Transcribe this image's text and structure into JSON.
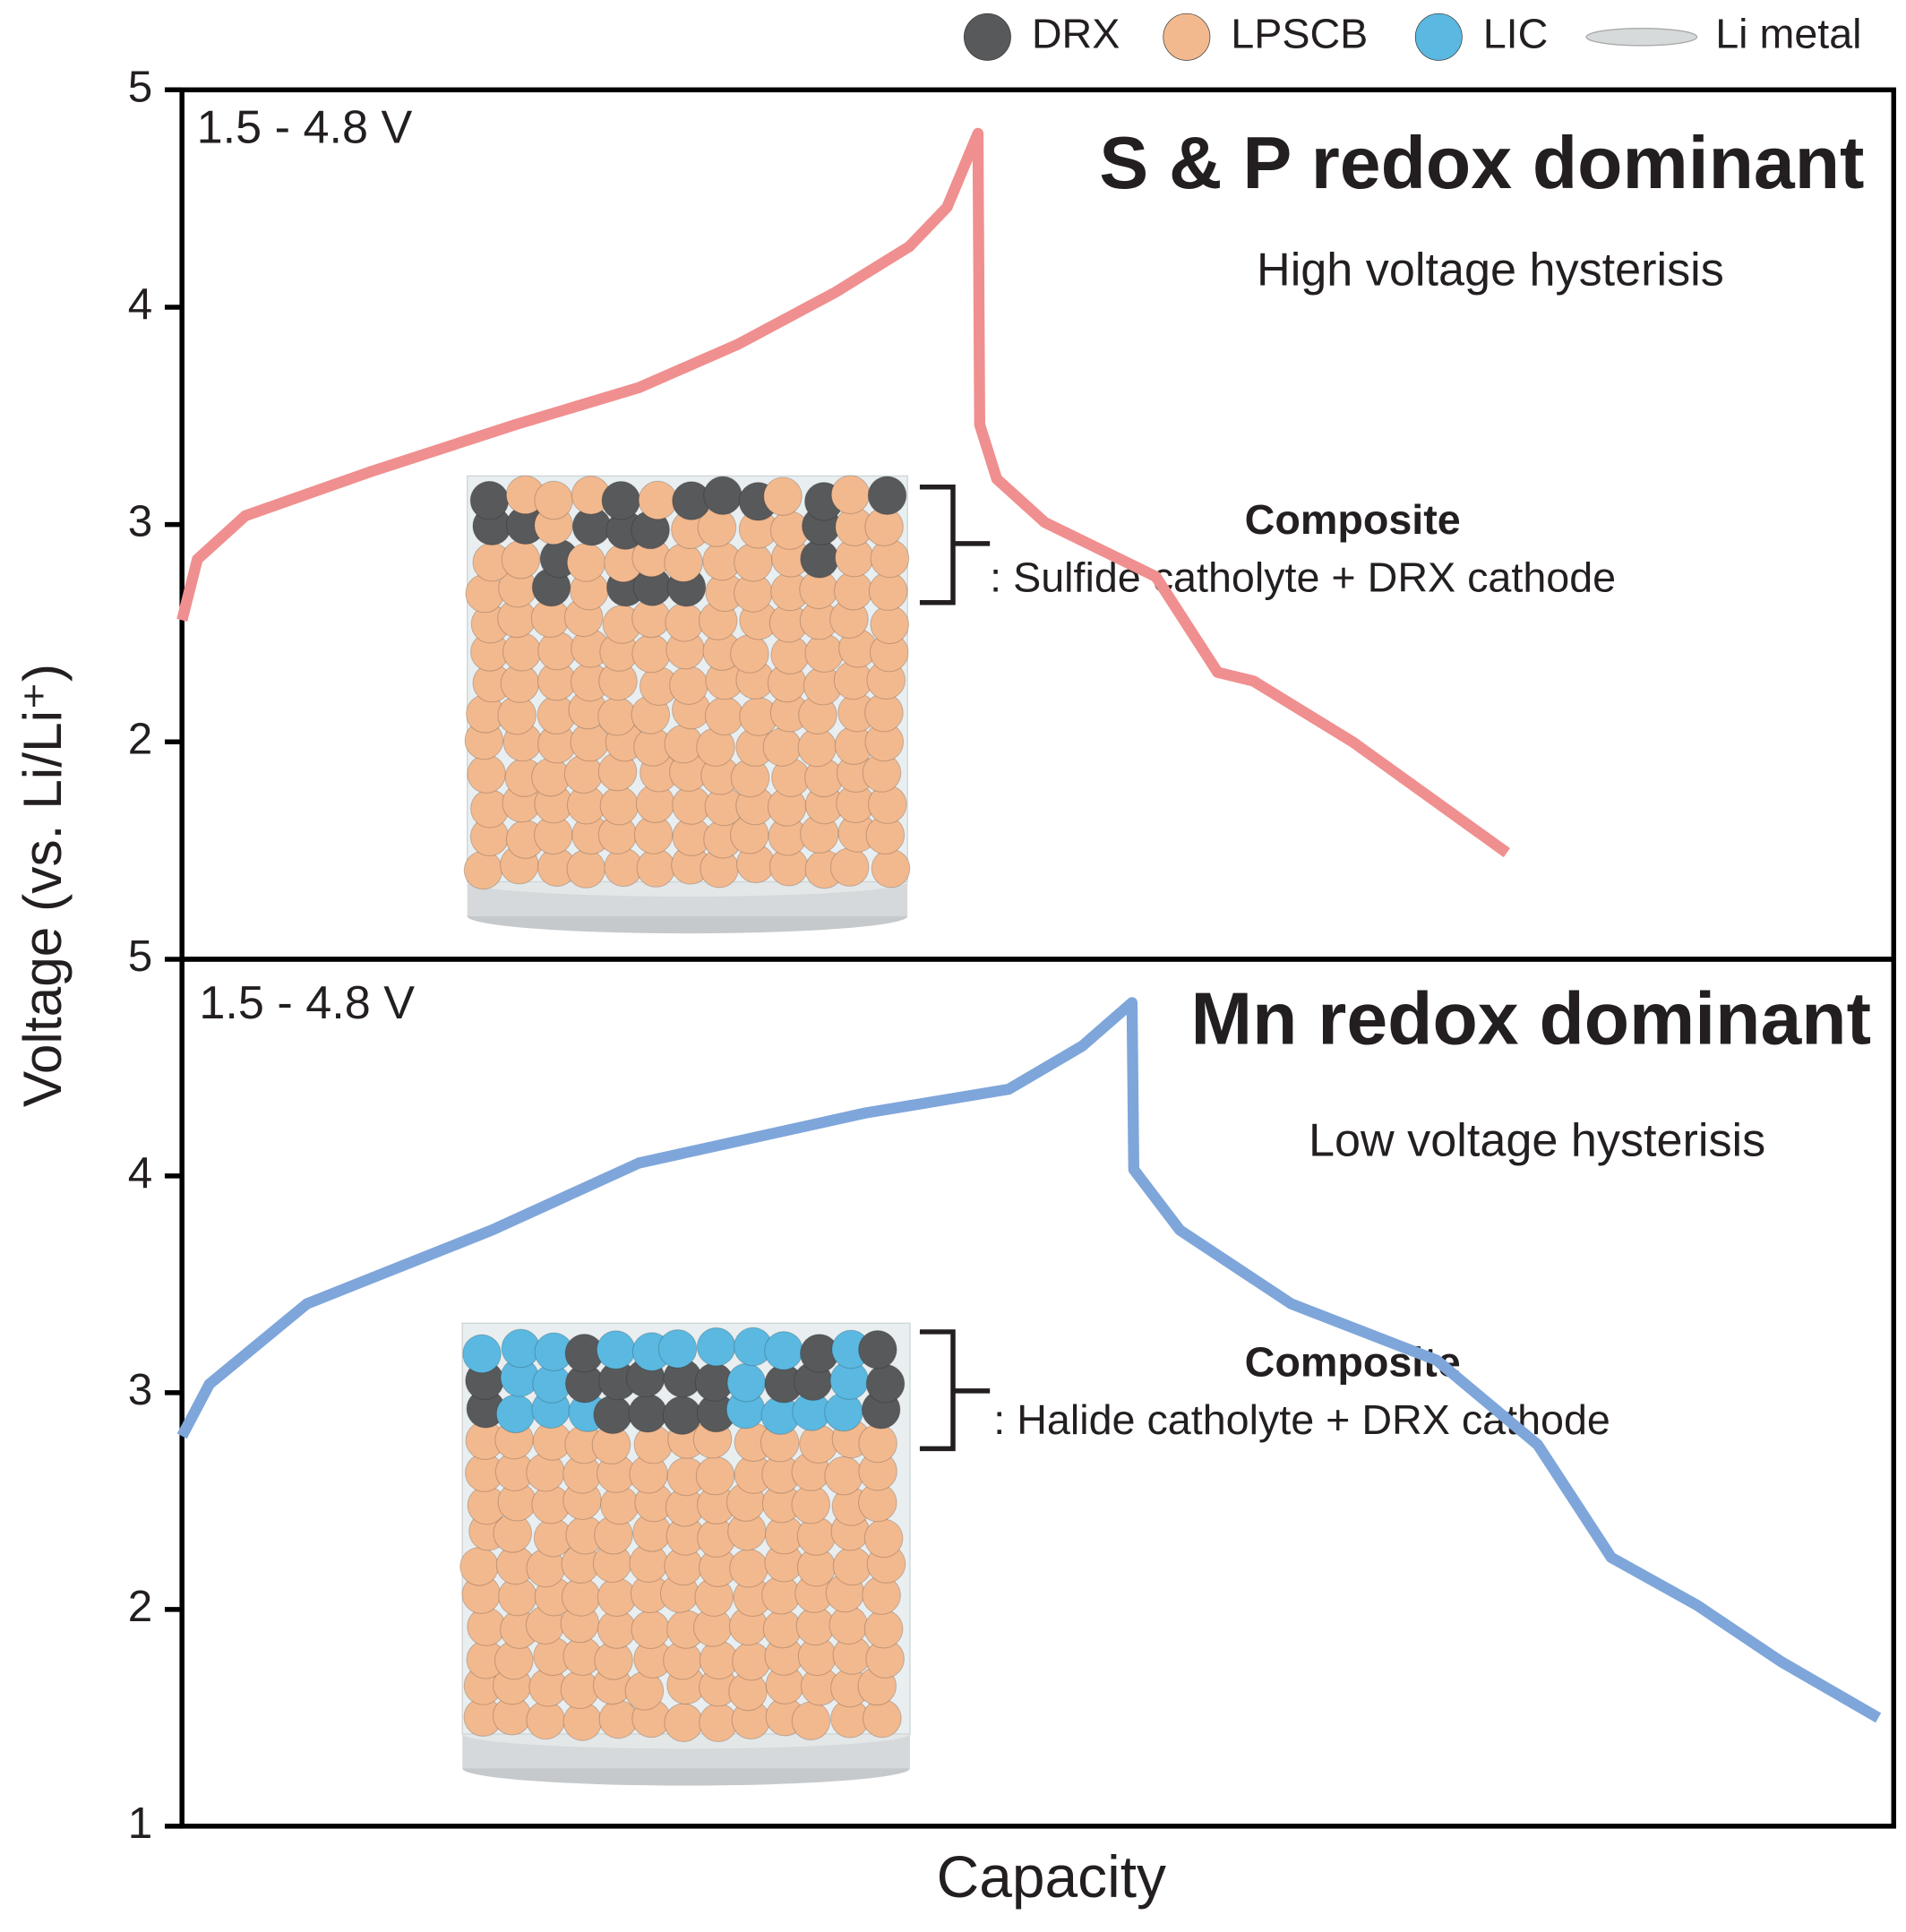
{
  "legend": [
    {
      "name": "DRX",
      "color": "#58595b"
    },
    {
      "name": "LPSCB",
      "color": "#f2b98f"
    },
    {
      "name": "LIC",
      "color": "#5bb8e0"
    },
    {
      "name": "Li metal",
      "color": "#d7dadb"
    }
  ],
  "y_label": "Voltage (vs. Li/Li⁺)",
  "x_label": "Capacity",
  "chart_data": [
    {
      "type": "line",
      "annotations": {
        "range": "1.5 - 4.8 V",
        "title": "S & P redox dominant",
        "subtitle": "High voltage hysterisis",
        "composite": "Composite",
        "description": ": Sulfide catholyte + DRX cathode"
      },
      "xlim": [
        0,
        100
      ],
      "ylim": [
        1,
        5
      ],
      "yticks": [
        2,
        3,
        4,
        5
      ],
      "color": "#f08f8f",
      "x": [
        0,
        0.9,
        3.7,
        10.9,
        19.5,
        26.7,
        32.5,
        38.2,
        42.5,
        44.7,
        46.5,
        46.6,
        47.6,
        50.4,
        56.9,
        60.5,
        62.6,
        68.4,
        77.4
      ],
      "values": [
        2.56,
        2.84,
        3.04,
        3.24,
        3.46,
        3.63,
        3.83,
        4.07,
        4.28,
        4.46,
        4.8,
        3.46,
        3.21,
        3.01,
        2.76,
        2.32,
        2.28,
        2.0,
        1.49
      ]
    },
    {
      "type": "line",
      "annotations": {
        "range": "1.5 - 4.8 V",
        "title": "Mn redox dominant",
        "subtitle": "Low voltage hysterisis",
        "composite": "Composite",
        "description": ": Halide catholyte + DRX cathode"
      },
      "xlim": [
        0,
        100
      ],
      "ylim": [
        1,
        5
      ],
      "yticks": [
        1,
        2,
        3,
        4,
        5
      ],
      "color": "#7ea6da",
      "x": [
        0,
        1.6,
        7.3,
        18.1,
        26.7,
        39.9,
        48.3,
        52.6,
        55.5,
        55.6,
        58.3,
        64.8,
        73.3,
        79.2,
        83.5,
        88.5,
        93.4,
        99.1
      ],
      "values": [
        2.8,
        3.04,
        3.41,
        3.75,
        4.06,
        4.29,
        4.4,
        4.6,
        4.8,
        4.03,
        3.75,
        3.41,
        3.15,
        2.76,
        2.24,
        2.02,
        1.76,
        1.5
      ]
    }
  ]
}
